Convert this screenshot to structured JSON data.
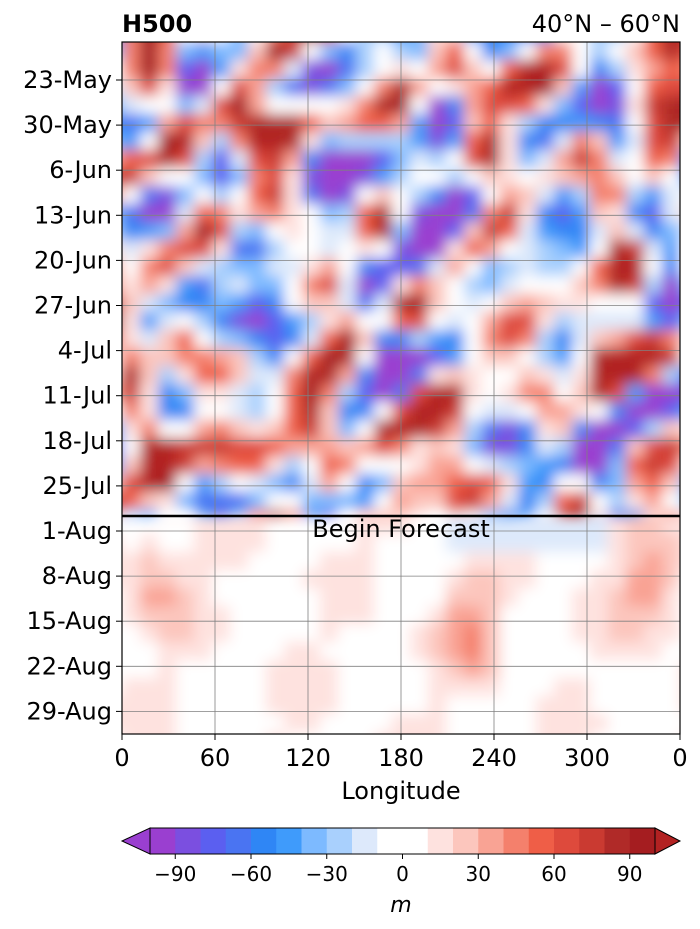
{
  "chart_data": {
    "type": "heatmap",
    "title": "H500",
    "subtitle": "40°N – 60°N",
    "xlabel": "Longitude",
    "ylabel": "",
    "x_ticks": [
      "0",
      "60",
      "120",
      "180",
      "240",
      "300",
      "0"
    ],
    "x_tick_values": [
      0,
      60,
      120,
      180,
      240,
      300,
      360
    ],
    "xlim": [
      0,
      360
    ],
    "y_ticks": [
      "23-May",
      "30-May",
      "6-Jun",
      "13-Jun",
      "20-Jun",
      "27-Jun",
      "4-Jul",
      "11-Jul",
      "18-Jul",
      "25-Jul",
      "1-Aug",
      "8-Aug",
      "15-Aug",
      "22-Aug",
      "29-Aug"
    ],
    "y_axis_inverted": true,
    "grid": true,
    "annotation": "Begin Forecast",
    "forecast_start": "1-Aug",
    "colorbar": {
      "label": "m",
      "ticks": [
        "−90",
        "−60",
        "−30",
        "0",
        "30",
        "60",
        "90"
      ],
      "tick_values": [
        -90,
        -60,
        -30,
        0,
        30,
        60,
        90
      ],
      "levels": [
        -100,
        -90,
        -80,
        -70,
        -60,
        -50,
        -40,
        -30,
        -20,
        -10,
        10,
        20,
        30,
        40,
        50,
        60,
        70,
        80,
        90,
        100
      ],
      "colors": [
        "#9a3fd0",
        "#7b4fe0",
        "#5b5ff0",
        "#4a74f2",
        "#2f86f5",
        "#3f9bfb",
        "#7dbaff",
        "#a9d0fd",
        "#dde9fb",
        "#ffffff",
        "#fee2df",
        "#fcc6bd",
        "#f9a394",
        "#f4806c",
        "#ef5e47",
        "#de4a3c",
        "#ca3a31",
        "#b02a28",
        "#a51d20"
      ],
      "extend": "both",
      "under_color": "#9a3fd0",
      "over_color": "#b22222"
    },
    "features": [
      {
        "lon": 255,
        "date": "23-May",
        "value": 95
      },
      {
        "lon": 340,
        "date": "23-May",
        "value": 90
      },
      {
        "lon": 75,
        "date": "30-May",
        "value": 80
      },
      {
        "lon": 150,
        "date": "6-Jun",
        "value": -90
      },
      {
        "lon": 195,
        "date": "13-Jun",
        "value": -80
      },
      {
        "lon": 65,
        "date": "27-Jun",
        "value": -95
      },
      {
        "lon": 195,
        "date": "4-Jul",
        "value": -90
      },
      {
        "lon": 275,
        "date": "18-Jul",
        "value": -90
      },
      {
        "lon": 320,
        "date": "4-Jul",
        "value": 100
      },
      {
        "lon": 190,
        "date": "18-Jul",
        "value": 85
      },
      {
        "lon": 295,
        "date": "23-May",
        "value": -95
      },
      {
        "lon": 350,
        "date": "11-Jul",
        "value": -85
      },
      {
        "lon": 5,
        "date": "27-Jun",
        "value": 80
      },
      {
        "lon": 30,
        "date": "18-Jul",
        "value": 75
      },
      {
        "lon": 225,
        "date": "4-Jul",
        "value": 80
      },
      {
        "lon": 100,
        "date": "11-Jul",
        "value": 70
      },
      {
        "lon": 15,
        "date": "8-Aug",
        "value": 25
      },
      {
        "lon": 220,
        "date": "15-Aug",
        "value": 30
      },
      {
        "lon": 335,
        "date": "8-Aug",
        "value": 30
      }
    ]
  }
}
